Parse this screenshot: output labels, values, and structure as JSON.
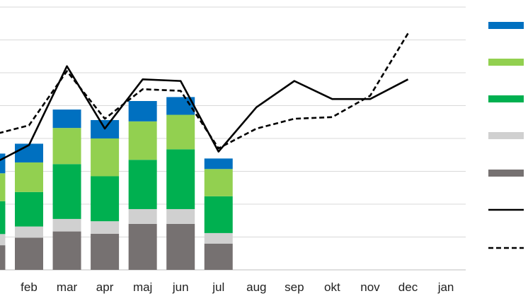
{
  "chart_data": {
    "type": "bar",
    "stacked": true,
    "categories": [
      "feb",
      "mar",
      "apr",
      "maj",
      "jun",
      "jul",
      "aug",
      "sep",
      "okt",
      "nov",
      "dec",
      "jan"
    ],
    "partial_category_left_edge": true,
    "ylim": [
      0,
      8
    ],
    "grid": true,
    "legend_position": "right",
    "series": [
      {
        "kind": "bar",
        "color": "#767171",
        "values": [
          0.98,
          1.17,
          1.1,
          1.4,
          1.4,
          0.8,
          null,
          null,
          null,
          null,
          null,
          null
        ]
      },
      {
        "kind": "bar",
        "color": "#d0d0d0",
        "values": [
          0.34,
          0.38,
          0.38,
          0.45,
          0.45,
          0.32,
          null,
          null,
          null,
          null,
          null,
          null
        ]
      },
      {
        "kind": "bar",
        "color": "#00b050",
        "values": [
          1.05,
          1.67,
          1.37,
          1.5,
          1.82,
          1.12,
          null,
          null,
          null,
          null,
          null,
          null
        ]
      },
      {
        "kind": "bar",
        "color": "#92d050",
        "values": [
          0.9,
          1.1,
          1.15,
          1.17,
          1.05,
          0.83,
          null,
          null,
          null,
          null,
          null,
          null
        ]
      },
      {
        "kind": "bar",
        "color": "#0070c0",
        "values": [
          0.57,
          0.56,
          0.56,
          0.62,
          0.54,
          0.32,
          null,
          null,
          null,
          null,
          null,
          null
        ]
      },
      {
        "kind": "line",
        "style": "solid",
        "color": "#000000",
        "values": [
          3.8,
          6.2,
          4.3,
          5.8,
          5.75,
          3.6,
          4.95,
          5.75,
          5.2,
          5.2,
          5.8,
          null
        ]
      },
      {
        "kind": "line",
        "style": "dashed",
        "color": "#000000",
        "values": [
          4.4,
          6.05,
          4.6,
          5.5,
          5.45,
          3.7,
          4.3,
          4.6,
          4.65,
          5.3,
          7.2,
          null
        ]
      }
    ],
    "left_edge_partial": {
      "bar_total": 3.55,
      "bar_layers": [
        0.75,
        0.34,
        1.0,
        0.85,
        0.6
      ],
      "solid_line_value": 3.2,
      "dashed_line_value": 4.1
    }
  }
}
